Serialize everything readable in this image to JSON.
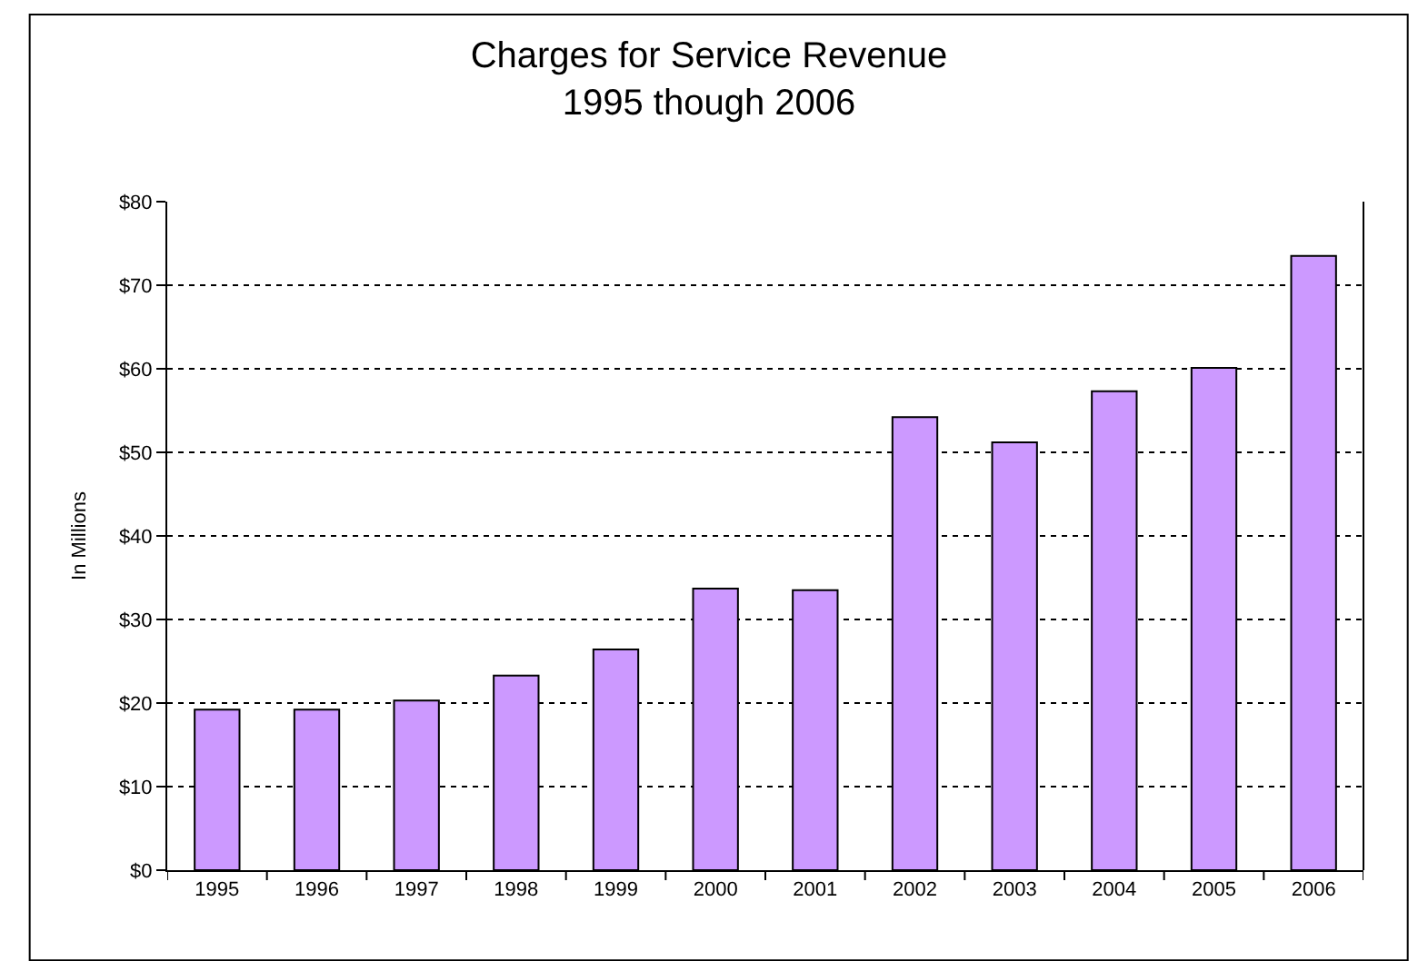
{
  "chart_data": {
    "type": "bar",
    "title": "Charges for Service Revenue",
    "subtitle": "1995 though 2006",
    "ylabel": "In Millions",
    "categories": [
      "1995",
      "1996",
      "1997",
      "1998",
      "1999",
      "2000",
      "2001",
      "2002",
      "2003",
      "2004",
      "2005",
      "2006"
    ],
    "values": [
      19.2,
      19.2,
      20.3,
      23.3,
      26.4,
      33.7,
      33.5,
      54.2,
      51.2,
      57.3,
      60.1,
      73.5
    ],
    "color": "#cc99ff",
    "ylim": [
      0,
      80
    ],
    "yticks": [
      {
        "value": 0,
        "label": "$0"
      },
      {
        "value": 10,
        "label": "$10"
      },
      {
        "value": 20,
        "label": "$20"
      },
      {
        "value": 30,
        "label": "$30"
      },
      {
        "value": 40,
        "label": "$40"
      },
      {
        "value": 50,
        "label": "$50"
      },
      {
        "value": 60,
        "label": "$60"
      },
      {
        "value": 70,
        "label": "$70"
      },
      {
        "value": 80,
        "label": "$80"
      }
    ],
    "grid": "y",
    "legend": false
  }
}
